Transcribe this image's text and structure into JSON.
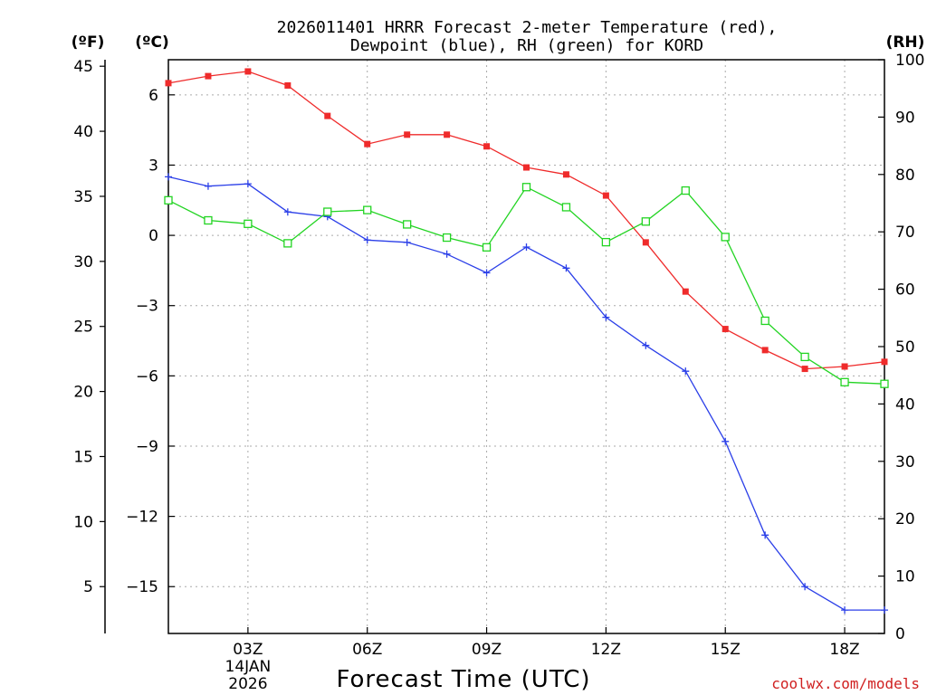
{
  "chart_data": {
    "type": "line",
    "title": [
      "2026011401 HRRR Forecast 2-meter Temperature (red),",
      "Dewpoint (blue), RH (green) for KORD"
    ],
    "xlabel": "Forecast Time (UTC)",
    "x_hours": [
      1,
      2,
      3,
      4,
      5,
      6,
      7,
      8,
      9,
      10,
      11,
      12,
      13,
      14,
      15,
      16,
      17,
      18,
      19
    ],
    "xlim": [
      1,
      19
    ],
    "x_ticks": [
      {
        "hour": 3,
        "label": "03Z",
        "sub": [
          "14JAN",
          "2026"
        ]
      },
      {
        "hour": 6,
        "label": "06Z",
        "sub": []
      },
      {
        "hour": 9,
        "label": "09Z",
        "sub": []
      },
      {
        "hour": 12,
        "label": "12Z",
        "sub": []
      },
      {
        "hour": 15,
        "label": "15Z",
        "sub": []
      },
      {
        "hour": 18,
        "label": "18Z",
        "sub": []
      }
    ],
    "y_celsius": {
      "unit_label": "(ºC)",
      "range": [
        -17,
        7.5
      ],
      "ticks": [
        6,
        3,
        0,
        -3,
        -6,
        -9,
        -12,
        -15
      ],
      "tick_labels": [
        "6",
        "3",
        "0",
        "−3",
        "−6",
        "−9",
        "−12",
        "−15"
      ]
    },
    "y_fahrenheit": {
      "unit_label": "(ºF)",
      "ticks": [
        45,
        40,
        35,
        30,
        25,
        20,
        15,
        10,
        5
      ],
      "tick_labels": [
        "45",
        "40",
        "35",
        "30",
        "25",
        "20",
        "15",
        "10",
        "5"
      ]
    },
    "y_rh": {
      "unit_label": "(RH)",
      "range": [
        0,
        100
      ],
      "ticks": [
        0,
        10,
        20,
        30,
        40,
        50,
        60,
        70,
        80,
        90,
        100
      ],
      "tick_labels": [
        "0",
        "10",
        "20",
        "30",
        "40",
        "50",
        "60",
        "70",
        "80",
        "90",
        "100"
      ]
    },
    "series": [
      {
        "name": "2-meter Temperature",
        "axis": "celsius",
        "color": "#ef2b2b",
        "marker": "filled-square",
        "values": [
          6.5,
          6.8,
          7.0,
          6.4,
          5.1,
          3.9,
          4.3,
          4.3,
          3.8,
          2.9,
          2.6,
          1.7,
          -0.3,
          -2.4,
          -4.0,
          -4.9,
          -5.7,
          -5.6,
          -5.4
        ]
      },
      {
        "name": "Dewpoint",
        "axis": "celsius",
        "color": "#2b3fe8",
        "marker": "plus",
        "values": [
          2.5,
          2.1,
          2.2,
          1.0,
          0.8,
          -0.2,
          -0.3,
          -0.8,
          -1.6,
          -0.5,
          -1.4,
          -3.5,
          -4.7,
          -5.8,
          -8.8,
          -12.8,
          -15.0,
          -16.0,
          -16.0
        ]
      },
      {
        "name": "RH",
        "axis": "rh",
        "color": "#22d422",
        "marker": "open-square",
        "values": [
          75.5,
          72.0,
          71.4,
          68.0,
          73.5,
          73.8,
          71.3,
          69.0,
          67.3,
          77.8,
          74.3,
          68.2,
          71.8,
          77.2,
          69.1,
          54.5,
          48.2,
          43.8,
          43.5
        ]
      }
    ]
  },
  "footer": {
    "source": "coolwx.com/models"
  }
}
